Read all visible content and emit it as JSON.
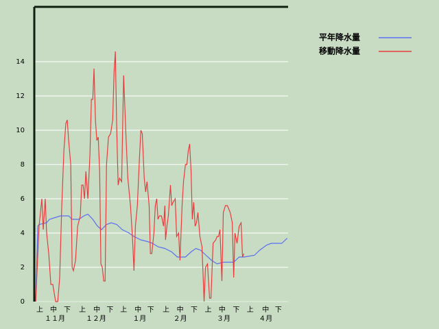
{
  "chart_data": {
    "type": "line",
    "xlim": [
      0,
      181
    ],
    "ylim": [
      0,
      17.2
    ],
    "yticks": [
      0,
      2,
      4,
      6,
      8,
      10,
      12,
      14
    ],
    "xticks": [
      {
        "value": 3.9,
        "label": "上"
      },
      {
        "value": 13.7,
        "label": "中"
      },
      {
        "value": 23.5,
        "label": "下"
      },
      {
        "value": 34.3,
        "label": "上"
      },
      {
        "value": 44.6,
        "label": "中"
      },
      {
        "value": 54,
        "label": "下"
      },
      {
        "value": 63.7,
        "label": "上"
      },
      {
        "value": 74,
        "label": "中"
      },
      {
        "value": 83,
        "label": "下"
      },
      {
        "value": 94,
        "label": "上"
      },
      {
        "value": 104,
        "label": "中"
      },
      {
        "value": 114,
        "label": "下"
      },
      {
        "value": 124,
        "label": "上"
      },
      {
        "value": 134,
        "label": "中"
      },
      {
        "value": 144,
        "label": "下"
      },
      {
        "value": 154,
        "label": "上"
      },
      {
        "value": 165,
        "label": "中"
      },
      {
        "value": 174,
        "label": "下"
      }
    ],
    "month_labels": [
      {
        "value": 14.7,
        "label": "１１月"
      },
      {
        "value": 44,
        "label": "１２月"
      },
      {
        "value": 75,
        "label": "１月"
      },
      {
        "value": 104,
        "label": "２月"
      },
      {
        "value": 135,
        "label": "３月"
      },
      {
        "value": 165,
        "label": "４月"
      }
    ],
    "grid": true,
    "series": [
      {
        "name": "平年降水量",
        "color": "#5a6ef0",
        "x": [
          1.0,
          2.5,
          3.4,
          8.8,
          10.8,
          14.7,
          18.6,
          24.5,
          27.0,
          31.9,
          35.3,
          38.2,
          41.7,
          45.1,
          48.0,
          51.5,
          54.9,
          58.8,
          62.7,
          67.6,
          71.1,
          76.0,
          80.9,
          84.3,
          88.2,
          93.1,
          98.0,
          102.0,
          107.8,
          111.8,
          115.2,
          118.6,
          122.5,
          126.5,
          130.4,
          134.8,
          142.2,
          146.1,
          149.5,
          156.9,
          160.8,
          165.7,
          169.1,
          176.5,
          180.4
        ],
        "values": [
          0,
          4.4,
          4.5,
          4.6,
          4.8,
          4.9,
          5.0,
          5.0,
          4.8,
          4.8,
          5.0,
          5.1,
          4.8,
          4.4,
          4.2,
          4.5,
          4.6,
          4.5,
          4.2,
          4.0,
          3.8,
          3.6,
          3.5,
          3.4,
          3.2,
          3.1,
          2.9,
          2.6,
          2.6,
          2.9,
          3.1,
          3.0,
          2.7,
          2.4,
          2.2,
          2.3,
          2.3,
          2.6,
          2.6,
          2.7,
          3.0,
          3.3,
          3.4,
          3.4,
          3.7
        ]
      },
      {
        "name": "移動降水量",
        "color": "#e83c3c",
        "x": [
          1.0,
          3.4,
          5.4,
          6.4,
          7.8,
          8.8,
          10.3,
          11.8,
          13.2,
          15.2,
          16.7,
          18.1,
          19.6,
          21.1,
          22.5,
          23.5,
          24.5,
          26.0,
          27.0,
          27.9,
          29.4,
          30.9,
          32.8,
          33.8,
          34.8,
          35.8,
          36.8,
          38.2,
          39.7,
          40.7,
          41.7,
          42.6,
          43.6,
          44.6,
          45.6,
          46.6,
          47.5,
          48.5,
          49.5,
          50.5,
          51.5,
          52.9,
          54.4,
          55.9,
          56.9,
          57.8,
          58.8,
          59.8,
          60.8,
          62.3,
          63.7,
          65.2,
          66.7,
          68.6,
          70.1,
          71.1,
          72.1,
          73.5,
          75.0,
          76.0,
          77.0,
          78.4,
          79.4,
          80.4,
          81.9,
          82.8,
          83.8,
          85.3,
          86.3,
          87.3,
          88.2,
          89.2,
          90.7,
          92.2,
          93.1,
          93.6,
          94.6,
          95.6,
          97.1,
          98.0,
          99.0,
          100.5,
          101.5,
          102.9,
          103.9,
          105.4,
          106.4,
          107.8,
          108.8,
          109.8,
          110.8,
          111.8,
          112.7,
          113.7,
          114.7,
          115.7,
          116.7,
          118.1,
          119.6,
          121.1,
          122.1,
          123.5,
          125.0,
          126.0,
          127.5,
          129.4,
          130.4,
          131.4,
          132.4,
          133.8,
          134.8,
          136.3,
          137.7,
          139.7,
          141.2,
          142.2,
          143.1,
          144.6,
          146.1,
          147.5,
          148.5,
          149.5
        ],
        "values": [
          0,
          4.4,
          6.0,
          4.2,
          6.0,
          4.0,
          2.8,
          1.0,
          1.0,
          0,
          0,
          1.4,
          5.6,
          8.8,
          10.4,
          10.6,
          9.4,
          8.0,
          2.0,
          1.8,
          2.4,
          4.4,
          5.0,
          6.8,
          6.8,
          6.0,
          7.6,
          6.0,
          8.6,
          11.8,
          11.8,
          13.6,
          10.6,
          9.4,
          9.6,
          7.6,
          2.2,
          2.0,
          1.2,
          1.2,
          8.0,
          9.6,
          9.8,
          10.6,
          13.4,
          14.6,
          10.0,
          6.8,
          7.2,
          7.0,
          13.2,
          10.0,
          7.2,
          5.6,
          3.6,
          1.8,
          4.4,
          5.6,
          8.4,
          10.0,
          9.8,
          7.2,
          6.4,
          7.0,
          5.6,
          2.8,
          2.8,
          4.0,
          5.6,
          6.0,
          4.8,
          5.0,
          5.0,
          4.4,
          5.6,
          3.6,
          4.4,
          5.0,
          6.8,
          5.6,
          5.8,
          6.0,
          3.8,
          4.0,
          2.4,
          5.6,
          7.0,
          8.0,
          8.0,
          8.8,
          9.2,
          7.6,
          4.8,
          5.8,
          4.4,
          4.6,
          5.2,
          3.8,
          3.2,
          0,
          2.0,
          2.2,
          0.2,
          0.2,
          3.4,
          3.6,
          3.8,
          3.8,
          4.2,
          1.2,
          5.2,
          5.6,
          5.6,
          5.2,
          4.6,
          1.4,
          4.0,
          3.4,
          4.4,
          4.6,
          2.6,
          2.8
        ]
      }
    ]
  }
}
